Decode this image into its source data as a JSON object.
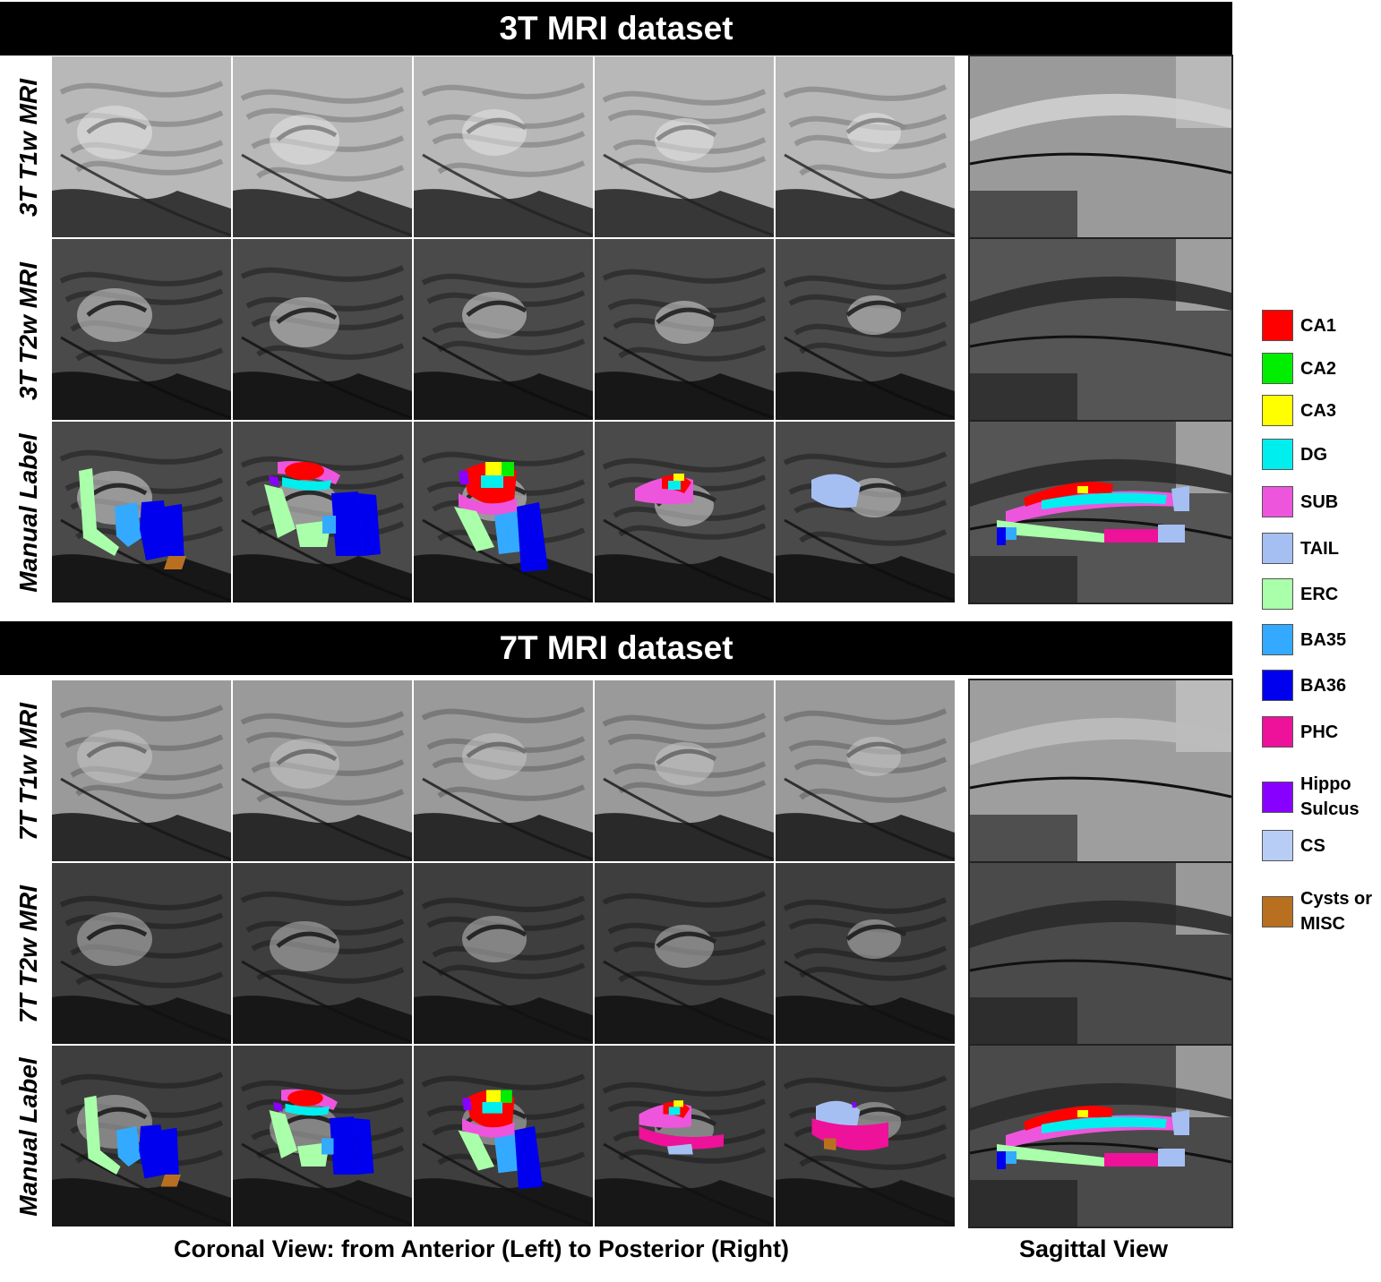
{
  "sections": [
    {
      "title": "3T MRI dataset",
      "rows": [
        "3T T1w MRI",
        "3T T2w MRI",
        "Manual Label"
      ]
    },
    {
      "title": "7T MRI dataset",
      "rows": [
        "7T T1w MRI",
        "7T T2w MRI",
        "Manual Label"
      ]
    }
  ],
  "legend": [
    {
      "label": "CA1",
      "color": "#ff0000"
    },
    {
      "label": "CA2",
      "color": "#00ee00"
    },
    {
      "label": "CA3",
      "color": "#ffff00"
    },
    {
      "label": "DG",
      "color": "#00eeee"
    },
    {
      "label": "SUB",
      "color": "#ee55dd"
    },
    {
      "label": "TAIL",
      "color": "#a6bff2"
    },
    {
      "label": "ERC",
      "color": "#aaffaa"
    },
    {
      "label": "BA35",
      "color": "#33aaff"
    },
    {
      "label": "BA36",
      "color": "#0000ee"
    },
    {
      "label": "PHC",
      "color": "#ee1199"
    },
    {
      "label": "Hippo\nSulcus",
      "color": "#8800ff"
    },
    {
      "label": "CS",
      "color": "#b8cdf5"
    },
    {
      "label": "Cysts or\nMISC",
      "color": "#b87020"
    }
  ],
  "captions": {
    "coronal": "Coronal View: from Anterior (Left) to Posterior (Right)",
    "sagittal": "Sagittal View"
  }
}
